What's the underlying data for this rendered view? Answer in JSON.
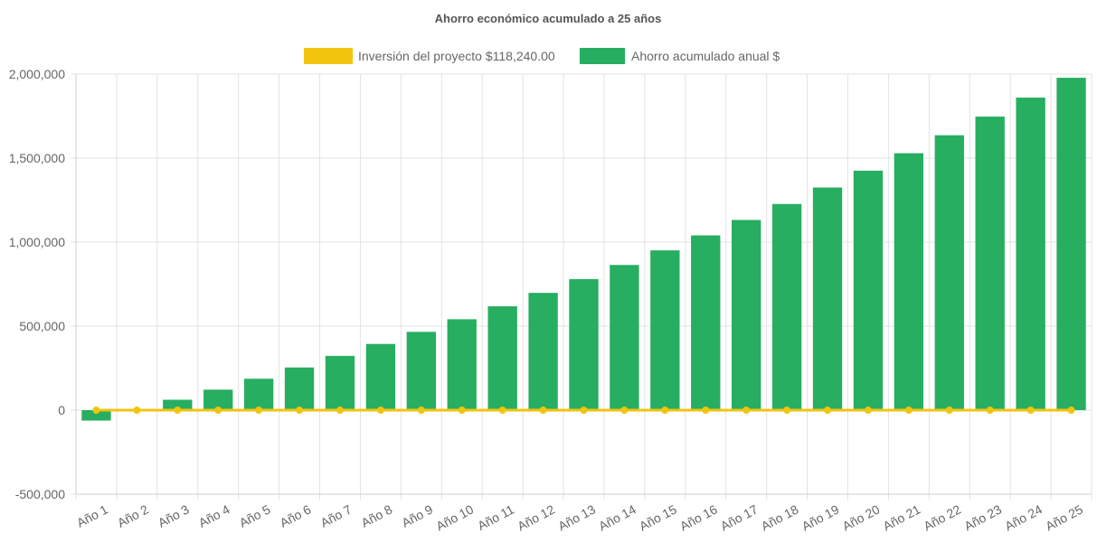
{
  "chart_data": {
    "type": "bar",
    "title": "Ahorro económico acumulado a 25 años",
    "categories": [
      "Año 1",
      "Año 2",
      "Año 3",
      "Año 4",
      "Año 5",
      "Año 6",
      "Año 7",
      "Año 8",
      "Año 9",
      "Año 10",
      "Año 11",
      "Año 12",
      "Año 13",
      "Año 14",
      "Año 15",
      "Año 16",
      "Año 17",
      "Año 18",
      "Año 19",
      "Año 20",
      "Año 21",
      "Año 22",
      "Año 23",
      "Año 24",
      "Año 25"
    ],
    "series": [
      {
        "name": "Ahorro acumulado anual $",
        "kind": "bar",
        "color": "#27ae60",
        "values": [
          -62000,
          5000,
          62000,
          122000,
          187000,
          254000,
          323000,
          394000,
          466000,
          541000,
          618000,
          698000,
          780000,
          864000,
          951000,
          1040000,
          1132000,
          1227000,
          1325000,
          1425000,
          1529000,
          1636000,
          1747000,
          1860000,
          1978000
        ]
      },
      {
        "name": "Inversión del proyecto $118,240.00",
        "kind": "line",
        "color": "#f1c40f",
        "values": [
          0,
          0,
          0,
          0,
          0,
          0,
          0,
          0,
          0,
          0,
          0,
          0,
          0,
          0,
          0,
          0,
          0,
          0,
          0,
          0,
          0,
          0,
          0,
          0,
          0
        ]
      }
    ],
    "ylim": [
      -500000,
      2000000
    ],
    "yticks": [
      2000000,
      1500000,
      1000000,
      500000,
      0,
      -500000
    ],
    "ytick_labels": [
      "2,000,000",
      "1,500,000",
      "1,000,000",
      "500,000",
      "0",
      "-500,000"
    ],
    "legend_position": "top",
    "grid": true
  }
}
